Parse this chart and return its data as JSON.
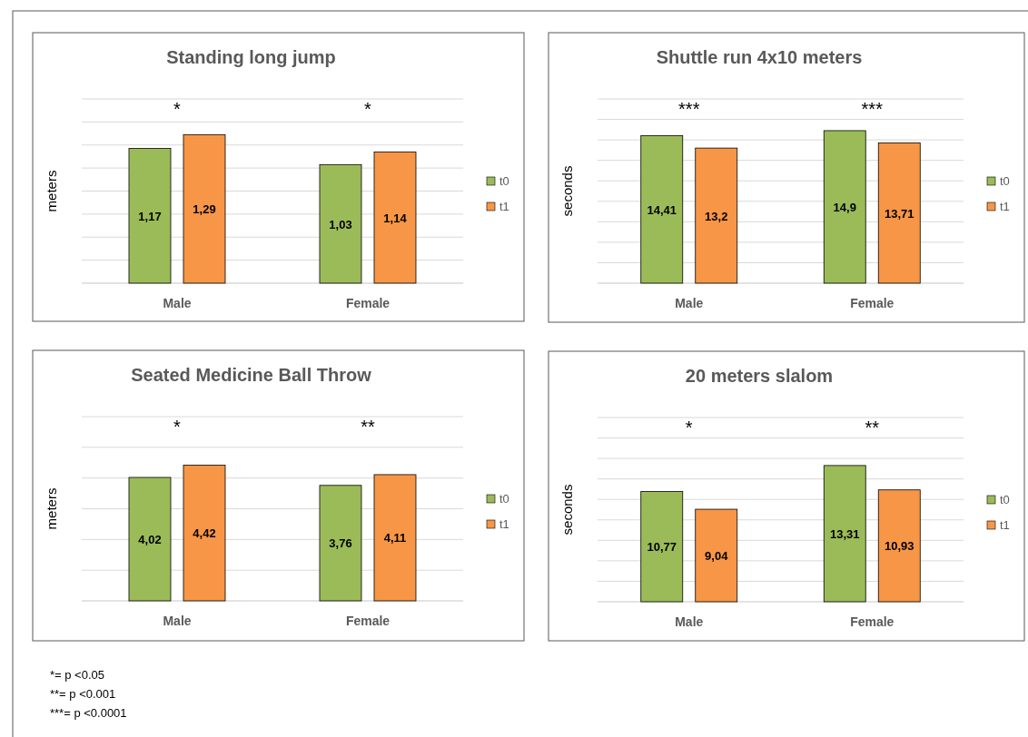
{
  "chart_data": [
    {
      "type": "bar",
      "title": "Standing long jump",
      "ylabel": "meters",
      "categories": [
        "Male",
        "Female"
      ],
      "ylim": [
        0,
        1.6
      ],
      "yticks": [
        {
          "value": 0,
          "label": null
        },
        {
          "value": 0.2,
          "label": null
        },
        {
          "value": 0.4,
          "label": null
        },
        {
          "value": 0.6,
          "label": null
        },
        {
          "value": 0.8,
          "label": null
        },
        {
          "value": 1,
          "label": null
        },
        {
          "value": 1.2,
          "label": null
        },
        {
          "value": 1.4,
          "label": null
        },
        {
          "value": 1.6,
          "label": null
        }
      ],
      "grid": "y",
      "legend": "right",
      "series": [
        {
          "name": "t0",
          "color": "#9bbb59",
          "values": [
            1.17,
            1.03
          ],
          "value_labels": [
            "1,17",
            "1,03"
          ]
        },
        {
          "name": "t1",
          "color": "#f79646",
          "values": [
            1.29,
            1.14
          ],
          "value_labels": [
            "1,29",
            "1,14"
          ]
        }
      ],
      "annotations": [
        "*",
        "*"
      ]
    },
    {
      "type": "bar",
      "title": "Shuttle run 4x10 meters",
      "ylabel": "seconds",
      "categories": [
        "Male",
        "Female"
      ],
      "ylim": [
        0,
        18
      ],
      "yticks": [
        {
          "value": 0,
          "label": null
        },
        {
          "value": 2,
          "label": null
        },
        {
          "value": 4,
          "label": null
        },
        {
          "value": 6,
          "label": null
        },
        {
          "value": 8,
          "label": null
        },
        {
          "value": 10,
          "label": null
        },
        {
          "value": 12,
          "label": null
        },
        {
          "value": 14,
          "label": null
        },
        {
          "value": 16,
          "label": null
        },
        {
          "value": 18,
          "label": null
        }
      ],
      "grid": "y",
      "legend": "right",
      "series": [
        {
          "name": "t0",
          "color": "#9bbb59",
          "values": [
            14.41,
            14.9
          ],
          "value_labels": [
            "14,41",
            "14,9"
          ]
        },
        {
          "name": "t1",
          "color": "#f79646",
          "values": [
            13.2,
            13.71
          ],
          "value_labels": [
            "13,2",
            "13,71"
          ]
        }
      ],
      "annotations": [
        "***",
        "***"
      ]
    },
    {
      "type": "bar",
      "title": "Seated Medicine Ball Throw",
      "ylabel": "meters",
      "categories": [
        "Male",
        "Female"
      ],
      "ylim": [
        0,
        6
      ],
      "yticks": [
        {
          "value": 0,
          "label": null
        },
        {
          "value": 1,
          "label": null
        },
        {
          "value": 2,
          "label": null
        },
        {
          "value": 3,
          "label": null
        },
        {
          "value": 4,
          "label": null
        },
        {
          "value": 5,
          "label": null
        },
        {
          "value": 6,
          "label": null
        }
      ],
      "grid": "y",
      "legend": "right",
      "series": [
        {
          "name": "t0",
          "color": "#9bbb59",
          "values": [
            4.02,
            3.76
          ],
          "value_labels": [
            "4,02",
            "3,76"
          ]
        },
        {
          "name": "t1",
          "color": "#f79646",
          "values": [
            4.42,
            4.11
          ],
          "value_labels": [
            "4,42",
            "4,11"
          ]
        }
      ],
      "annotations": [
        "*",
        "**"
      ]
    },
    {
      "type": "bar",
      "title": "20 meters slalom",
      "ylabel": "seconds",
      "categories": [
        "Male",
        "Female"
      ],
      "ylim": [
        0,
        18
      ],
      "yticks": [
        {
          "value": 0,
          "label": null
        },
        {
          "value": 2,
          "label": null
        },
        {
          "value": 4,
          "label": null
        },
        {
          "value": 6,
          "label": null
        },
        {
          "value": 8,
          "label": null
        },
        {
          "value": 10,
          "label": null
        },
        {
          "value": 12,
          "label": null
        },
        {
          "value": 14,
          "label": null
        },
        {
          "value": 16,
          "label": null
        },
        {
          "value": 18,
          "label": null
        }
      ],
      "grid": "y",
      "legend": "right",
      "series": [
        {
          "name": "t0",
          "color": "#9bbb59",
          "values": [
            10.77,
            13.31
          ],
          "value_labels": [
            "10,77",
            "13,31"
          ]
        },
        {
          "name": "t1",
          "color": "#f79646",
          "values": [
            9.04,
            10.93
          ],
          "value_labels": [
            "9,04",
            "10,93"
          ]
        }
      ],
      "annotations": [
        "*",
        "**",
        "*= p <0.05",
        "**= p <0.001",
        "***= p <0.0001"
      ]
    }
  ]
}
